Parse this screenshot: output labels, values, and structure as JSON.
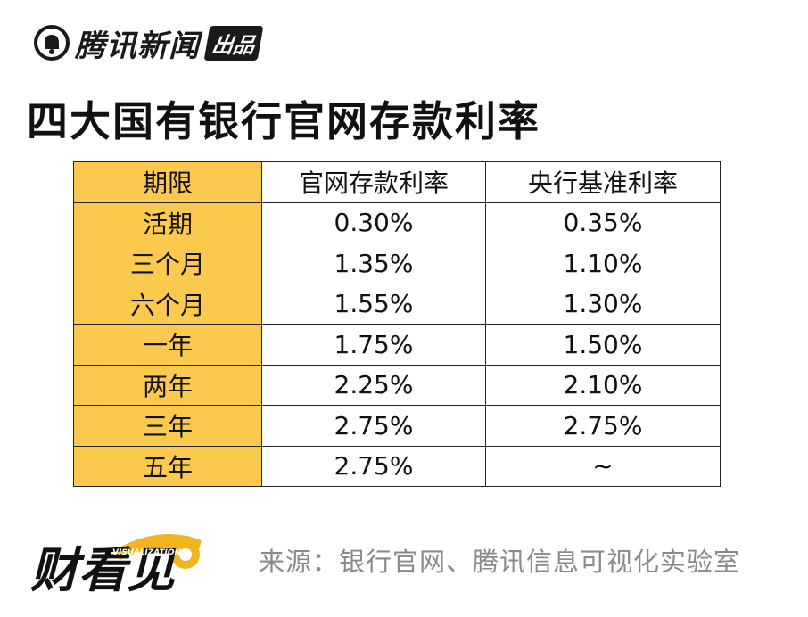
{
  "header": {
    "logo_text": "腾讯新闻",
    "logo_badge": "出品"
  },
  "title": "四大国有银行官网存款利率",
  "brand_logo": {
    "text": "财看见",
    "subtext": "VISUALIZATION"
  },
  "source": "来源：银行官网、腾讯信息可视化实验室",
  "colors": {
    "header_fill": "#fbc94e",
    "border": "#222222",
    "source_text": "#8a8a8a"
  },
  "chart_data": {
    "type": "table",
    "columns": [
      "期限",
      "官网存款利率",
      "央行基准利率"
    ],
    "rows": [
      [
        "活期",
        "0.30%",
        "0.35%"
      ],
      [
        "三个月",
        "1.35%",
        "1.10%"
      ],
      [
        "六个月",
        "1.55%",
        "1.30%"
      ],
      [
        "一年",
        "1.75%",
        "1.50%"
      ],
      [
        "两年",
        "2.25%",
        "2.10%"
      ],
      [
        "三年",
        "2.75%",
        "2.75%"
      ],
      [
        "五年",
        "2.75%",
        "~"
      ]
    ]
  }
}
